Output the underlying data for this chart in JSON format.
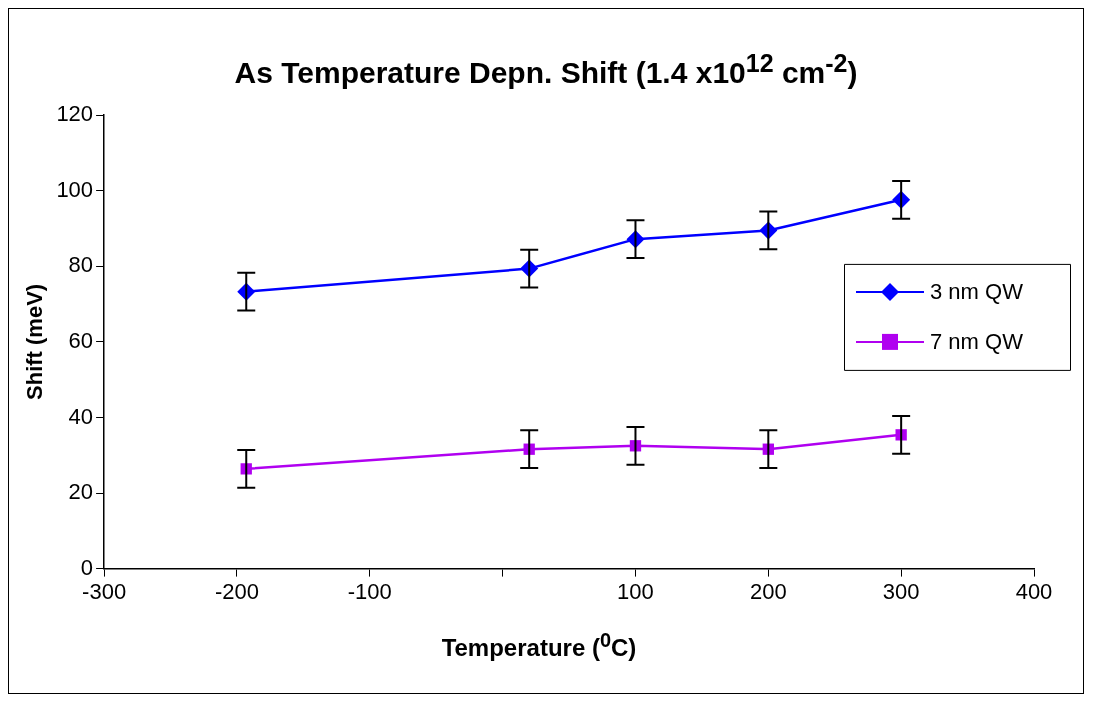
{
  "chart_data": {
    "type": "line",
    "title": "As Temperature Depn. Shift (1.4 x10$^{12}$ cm$^{-2}$)",
    "xlabel": "Temperature ($^{0}$C)",
    "ylabel": "Shift (meV)",
    "x": [
      -193,
      20,
      100,
      200,
      300
    ],
    "series": [
      {
        "name": "3 nm QW",
        "color": "#0000ff",
        "marker": "diamond",
        "values": [
          73.3,
          79.4,
          87.2,
          89.5,
          97.6
        ],
        "errors": [
          5,
          5,
          5,
          5,
          5
        ]
      },
      {
        "name": "7 nm QW",
        "color": "#b000f0",
        "marker": "square",
        "values": [
          26.4,
          31.6,
          32.5,
          31.6,
          35.4
        ],
        "errors": [
          5,
          5,
          5,
          5,
          5
        ]
      }
    ],
    "xlim": [
      -300,
      400
    ],
    "xticks": [
      -300,
      -200,
      -100,
      {
        "value": 0,
        "label": null
      },
      100,
      200,
      300,
      400
    ],
    "ylim": [
      0,
      120
    ],
    "yticks": [
      0,
      20,
      40,
      60,
      80,
      100,
      120
    ],
    "grid": false,
    "legend": "right",
    "line_style": "solid"
  }
}
